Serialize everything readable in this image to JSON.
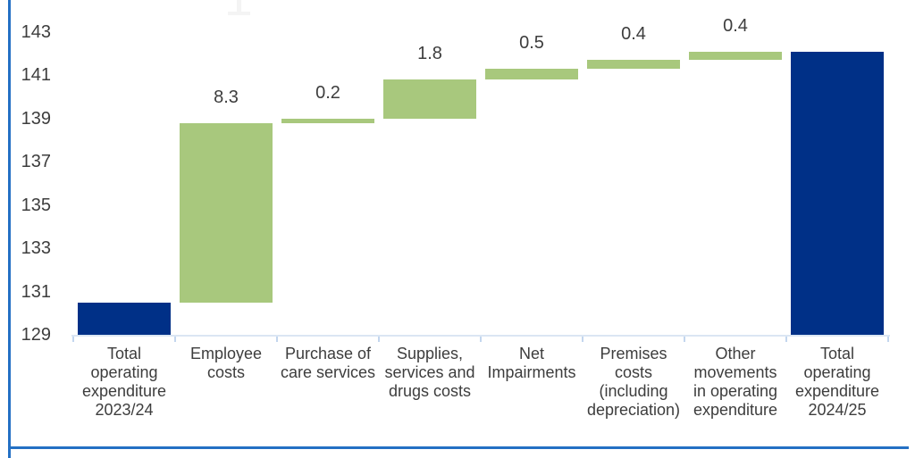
{
  "page": {
    "background": "#ffffff",
    "frame_border_color": "#2470c4",
    "artifact_color": "#f4f4f4"
  },
  "chart_data": {
    "type": "bar",
    "subtype": "waterfall",
    "title": "",
    "xlabel": "",
    "ylabel": "",
    "ylim": [
      129,
      143
    ],
    "y_ticks": [
      143,
      141,
      139,
      137,
      135,
      133,
      131,
      129
    ],
    "grid": false,
    "legend": false,
    "colors": {
      "total_bar": "#003087",
      "change_bar": "#a8c87d",
      "axis_line": "#dbe6f3",
      "axis_tick": "#c3d6ee",
      "text": "#3d3d3d"
    },
    "categories": [
      "Total operating expenditure 2023/24",
      "Employee costs",
      "Purchase of care services",
      "Supplies, services and drugs costs",
      "Net Impairments",
      "Premises costs (including depreciation)",
      "Other movements in operating expenditure",
      "Total operating expenditure 2024/25"
    ],
    "bars": [
      {
        "category": "Total operating expenditure 2023/24",
        "category_lines": "Total\noperating\nexpenditure\n2023/24",
        "role": "total",
        "start": 129,
        "end": 130.5,
        "value": 130.5,
        "data_label": ""
      },
      {
        "category": "Employee costs",
        "category_lines": "Employee\ncosts",
        "role": "increase",
        "start": 130.5,
        "end": 138.8,
        "value": 8.3,
        "data_label": "8.3"
      },
      {
        "category": "Purchase of care services",
        "category_lines": "Purchase of\ncare services",
        "role": "increase",
        "start": 138.8,
        "end": 139.0,
        "value": 0.2,
        "data_label": "0.2"
      },
      {
        "category": "Supplies, services and drugs costs",
        "category_lines": "Supplies,\nservices and\ndrugs costs",
        "role": "increase",
        "start": 139.0,
        "end": 140.8,
        "value": 1.8,
        "data_label": "1.8"
      },
      {
        "category": "Net Impairments",
        "category_lines": "Net\nImpairments",
        "role": "increase",
        "start": 140.8,
        "end": 141.3,
        "value": 0.5,
        "data_label": "0.5"
      },
      {
        "category": "Premises costs (including depreciation)",
        "category_lines": "Premises\ncosts\n(including\ndepreciation)",
        "role": "increase",
        "start": 141.3,
        "end": 141.7,
        "value": 0.4,
        "data_label": "0.4"
      },
      {
        "category": "Other movements in operating expenditure",
        "category_lines": "Other\nmovements\nin operating\nexpenditure",
        "role": "increase",
        "start": 141.7,
        "end": 142.1,
        "value": 0.4,
        "data_label": "0.4"
      },
      {
        "category": "Total operating expenditure 2024/25",
        "category_lines": "Total\noperating\nexpenditure\n2024/25",
        "role": "total",
        "start": 129,
        "end": 142.1,
        "value": 142.1,
        "data_label": ""
      }
    ]
  }
}
